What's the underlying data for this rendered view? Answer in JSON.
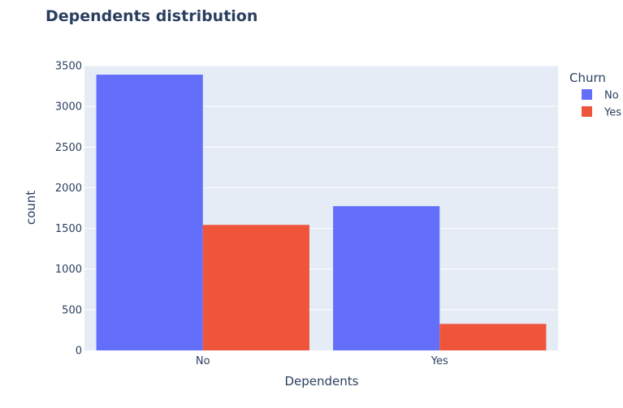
{
  "chart_data": {
    "type": "bar",
    "barmode": "group",
    "title": "Dependents distribution",
    "xlabel": "Dependents",
    "ylabel": "count",
    "categories": [
      "No",
      "Yes"
    ],
    "series": [
      {
        "name": "No",
        "values": [
          3390,
          1773
        ],
        "color": "#636efa"
      },
      {
        "name": "Yes",
        "values": [
          1543,
          326
        ],
        "color": "#ef553b"
      }
    ],
    "ylim": [
      0,
      3500
    ],
    "yticks": [
      0,
      500,
      1000,
      1500,
      2000,
      2500,
      3000,
      3500
    ],
    "legend": {
      "title": "Churn",
      "placement": "right"
    },
    "grid": true,
    "colors": {
      "plot_bg": "#e5ecf6",
      "grid": "#ffffff",
      "text": "#2a3f5f"
    }
  }
}
